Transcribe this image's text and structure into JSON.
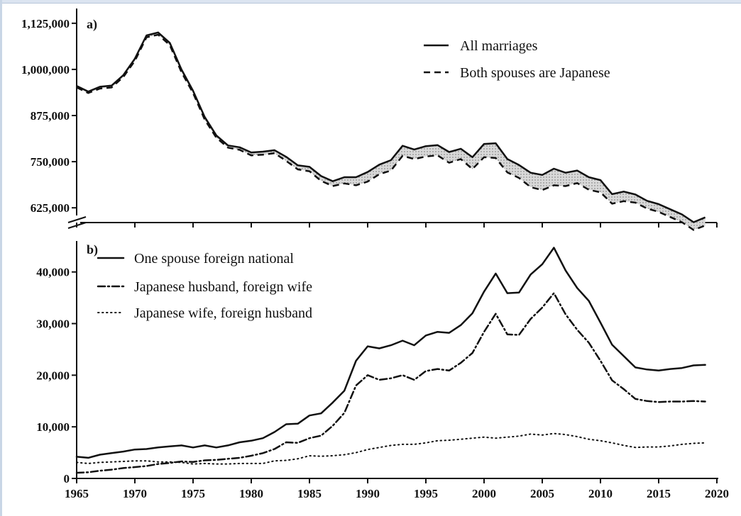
{
  "chart_data": [
    {
      "type": "line",
      "panel_label": "a)",
      "x": [
        1965,
        1966,
        1967,
        1968,
        1969,
        1970,
        1971,
        1972,
        1973,
        1974,
        1975,
        1976,
        1977,
        1978,
        1979,
        1980,
        1981,
        1982,
        1983,
        1984,
        1985,
        1986,
        1987,
        1988,
        1989,
        1990,
        1991,
        1992,
        1993,
        1994,
        1995,
        1996,
        1997,
        1998,
        1999,
        2000,
        2001,
        2002,
        2003,
        2004,
        2005,
        2006,
        2007,
        2008,
        2009,
        2010,
        2011,
        2012,
        2013,
        2014,
        2015,
        2016,
        2017,
        2018,
        2019
      ],
      "series": [
        {
          "name": "All marriages",
          "style": "solid",
          "values": [
            955000,
            940000,
            953000,
            956000,
            984000,
            1029000,
            1092000,
            1100000,
            1072000,
            1000000,
            942000,
            871000,
            821000,
            794000,
            789000,
            775000,
            777000,
            781000,
            763000,
            740000,
            736000,
            711000,
            697000,
            708000,
            708000,
            722000,
            742000,
            754000,
            793000,
            783000,
            792000,
            795000,
            776000,
            785000,
            762000,
            798000,
            800000,
            757000,
            741000,
            720000,
            714000,
            731000,
            720000,
            726000,
            708000,
            700000,
            662000,
            669000,
            661000,
            644000,
            635000,
            621000,
            607000,
            586000,
            599000
          ]
        },
        {
          "name": "Both spouses are Japanese",
          "style": "dashed",
          "values": [
            951000,
            936000,
            948000,
            951000,
            979000,
            1023000,
            1087000,
            1094000,
            1066000,
            993000,
            936000,
            864000,
            815000,
            788000,
            782000,
            767000,
            769000,
            773000,
            752000,
            729000,
            724000,
            698000,
            684000,
            691000,
            686000,
            696000,
            716000,
            726000,
            766000,
            757000,
            764000,
            767000,
            747000,
            757000,
            730000,
            762000,
            760000,
            721000,
            706000,
            681000,
            673000,
            686000,
            684000,
            692000,
            674000,
            667000,
            636000,
            643000,
            639000,
            623000,
            614000,
            600000,
            586000,
            565000,
            577000
          ]
        }
      ],
      "yticks": [
        "1,125,000",
        "1,000,000",
        "875,000",
        "750,000",
        "625,000"
      ],
      "ylim": [
        585000,
        1165000
      ]
    },
    {
      "type": "line",
      "panel_label": "b)",
      "x": [
        1965,
        1966,
        1967,
        1968,
        1969,
        1970,
        1971,
        1972,
        1973,
        1974,
        1975,
        1976,
        1977,
        1978,
        1979,
        1980,
        1981,
        1982,
        1983,
        1984,
        1985,
        1986,
        1987,
        1988,
        1989,
        1990,
        1991,
        1992,
        1993,
        1994,
        1995,
        1996,
        1997,
        1998,
        1999,
        2000,
        2001,
        2002,
        2003,
        2004,
        2005,
        2006,
        2007,
        2008,
        2009,
        2010,
        2011,
        2012,
        2013,
        2014,
        2015,
        2016,
        2017,
        2018,
        2019
      ],
      "series": [
        {
          "name": "One spouse foreign national",
          "style": "solid",
          "values": [
            4200,
            4000,
            4600,
            4900,
            5200,
            5600,
            5700,
            6000,
            6200,
            6400,
            6000,
            6400,
            6000,
            6400,
            7000,
            7300,
            7800,
            9000,
            10500,
            10600,
            12200,
            12600,
            14700,
            17000,
            22800,
            25600,
            25200,
            25800,
            26700,
            25800,
            27700,
            28400,
            28200,
            29700,
            32000,
            36200,
            39700,
            35900,
            36000,
            39500,
            41500,
            44700,
            40300,
            36900,
            34400,
            30200,
            25900,
            23700,
            21500,
            21100,
            20900,
            21200,
            21400,
            21900,
            22000
          ]
        },
        {
          "name": "Japanese husband, foreign wife",
          "style": "dashdot",
          "values": [
            1100,
            1200,
            1500,
            1700,
            2000,
            2200,
            2400,
            2800,
            3000,
            3300,
            3200,
            3500,
            3600,
            3800,
            4000,
            4400,
            4900,
            5700,
            7000,
            6900,
            7800,
            8300,
            10200,
            12700,
            18000,
            20000,
            19100,
            19400,
            20000,
            19100,
            20800,
            21200,
            20900,
            22400,
            24300,
            28400,
            31900,
            27900,
            27800,
            30900,
            33100,
            35900,
            31800,
            28800,
            26300,
            22800,
            19000,
            17300,
            15400,
            15000,
            14800,
            14900,
            14900,
            15000,
            14900
          ]
        },
        {
          "name": "Japanese wife, foreign husband",
          "style": "dotted",
          "values": [
            3100,
            2900,
            3100,
            3200,
            3300,
            3400,
            3400,
            3200,
            3200,
            3100,
            2800,
            2900,
            2800,
            2800,
            2900,
            2900,
            2900,
            3400,
            3500,
            3800,
            4400,
            4300,
            4400,
            4600,
            5000,
            5600,
            6000,
            6400,
            6600,
            6600,
            6900,
            7300,
            7400,
            7600,
            7800,
            8000,
            7800,
            8000,
            8200,
            8600,
            8400,
            8700,
            8500,
            8100,
            7600,
            7300,
            6900,
            6400,
            6000,
            6100,
            6100,
            6300,
            6600,
            6800,
            6900
          ]
        }
      ],
      "yticks": [
        "40,000",
        "30,000",
        "20,000",
        "10,000",
        "0"
      ],
      "ylim": [
        0,
        46000
      ]
    }
  ],
  "xticks": [
    "1965",
    "1970",
    "1975",
    "1980",
    "1985",
    "1990",
    "1995",
    "2000",
    "2005",
    "2010",
    "2015",
    "2020"
  ],
  "break_mark": "//"
}
